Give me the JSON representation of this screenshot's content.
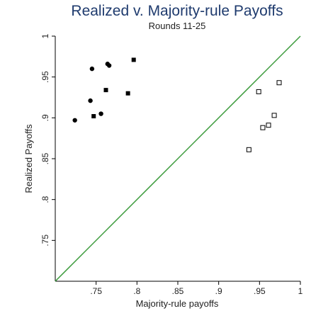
{
  "chart_data": {
    "type": "scatter",
    "title": "Realized v. Majority-rule  Payoffs",
    "subtitle": "Rounds 11-25",
    "xlabel": "Majority-rule  payoffs",
    "ylabel": "Realized Payoffs",
    "xlim": [
      0.7,
      1.0
    ],
    "ylim": [
      0.7,
      1.0
    ],
    "x_ticks": [
      0.75,
      0.8,
      0.85,
      0.9,
      0.95,
      1.0
    ],
    "x_tick_labels": [
      ".75",
      ".8",
      ".85",
      ".9",
      ".95",
      "1"
    ],
    "y_ticks": [
      0.75,
      0.8,
      0.85,
      0.9,
      0.95,
      1.0
    ],
    "y_tick_labels": [
      ".75",
      ".8",
      ".85",
      ".9",
      ".95",
      "1"
    ],
    "grid": false,
    "reference_line": {
      "from": [
        0.7,
        0.7
      ],
      "to": [
        1.0,
        1.0
      ],
      "color": "#3a9a3a"
    },
    "series": [
      {
        "marker": "circle-filled",
        "color": "#000000",
        "points": [
          [
            0.724,
            0.897
          ],
          [
            0.743,
            0.921
          ],
          [
            0.745,
            0.96
          ],
          [
            0.756,
            0.905
          ],
          [
            0.764,
            0.966
          ],
          [
            0.766,
            0.964
          ]
        ]
      },
      {
        "marker": "square-filled",
        "color": "#000000",
        "points": [
          [
            0.747,
            0.902
          ],
          [
            0.762,
            0.934
          ],
          [
            0.789,
            0.93
          ],
          [
            0.796,
            0.971
          ]
        ]
      },
      {
        "marker": "square-hollow",
        "color": "#000000",
        "points": [
          [
            0.937,
            0.861
          ],
          [
            0.949,
            0.932
          ],
          [
            0.954,
            0.888
          ],
          [
            0.961,
            0.891
          ],
          [
            0.968,
            0.903
          ],
          [
            0.974,
            0.943
          ]
        ]
      }
    ]
  }
}
